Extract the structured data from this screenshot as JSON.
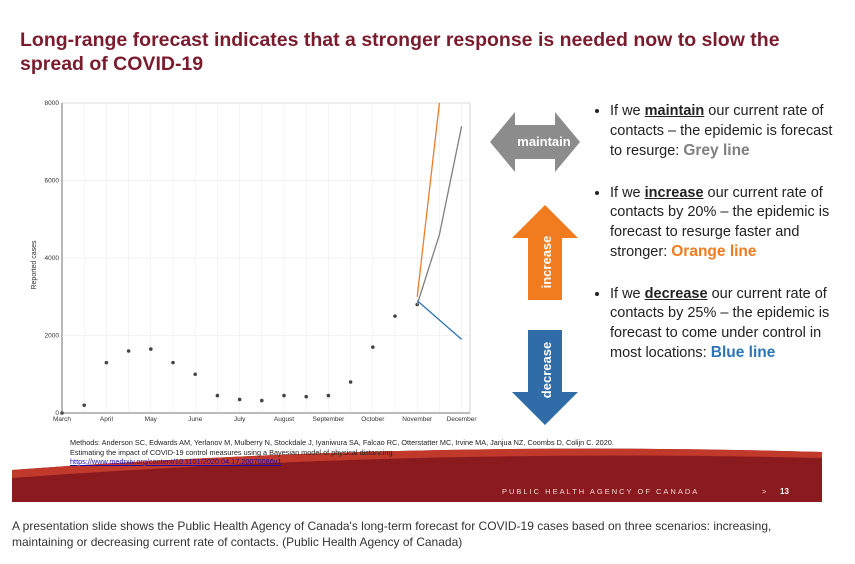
{
  "slide": {
    "title": "Long-range forecast indicates that a stronger response is needed now to slow the spread of COVID-19",
    "methods": "Methods: Anderson SC, Edwards AM, Yerlanov M, Mulberry N, Stockdale J, Iyaniwura SA, Falcao RC, Otterstatter MC, Irvine MA, Janjua NZ, Coombs D, Colijn C. 2020. Estimating the impact of COVID-19 control measures using a Bayesian model of physical distancing.",
    "link": "https://www.medrxiv.org/content/10.1101/2020.04.17.20070086v1",
    "footer": "PUBLIC HEALTH AGENCY OF CANADA",
    "footer_sep": ">",
    "page": "13"
  },
  "arrows": [
    "maintain",
    "increase",
    "decrease"
  ],
  "bullets": [
    {
      "before": "If we ",
      "keyword": "maintain",
      "after": " our current rate of contacts – the epidemic is forecast to resurge: "
    },
    {
      "before": "If we ",
      "keyword": "increase",
      "after": " our current rate of contacts by 20% – the epidemic is forecast to resurge faster and stronger: "
    },
    {
      "before": "If we ",
      "keyword": "decrease",
      "after": " our current rate of contacts by 25% – the epidemic is forecast to come under control in most locations: "
    }
  ],
  "caption": "A presentation slide shows the Public Health Agency of Canada's long-term forecast for COVID-19 cases based on three scenarios: increasing, maintaining or decreasing current rate of contacts. (Public Health Agency of Canada)",
  "chart_data": {
    "type": "line",
    "y_label": "Reported cases",
    "categories": [
      "March",
      null,
      "April",
      null,
      "May",
      null,
      "June",
      null,
      "July",
      null,
      "August",
      null,
      "September",
      null,
      "October",
      null,
      "November",
      null,
      "December"
    ],
    "series": [
      {
        "color": "#444444",
        "style": "points",
        "values": [
          0,
          200,
          1300,
          1600,
          1650,
          1300,
          1000,
          450,
          350,
          320,
          450,
          420,
          450,
          800,
          1700,
          2500,
          2800,
          null,
          null
        ]
      },
      {
        "name": "Grey line",
        "color": "#7f7f7f",
        "style": "line",
        "values": [
          null,
          null,
          null,
          null,
          null,
          null,
          null,
          null,
          null,
          null,
          null,
          null,
          null,
          null,
          null,
          null,
          2800,
          4600,
          7400
        ]
      },
      {
        "name": "Orange line",
        "color": "#f07c2a",
        "style": "line",
        "values": [
          null,
          null,
          null,
          null,
          null,
          null,
          null,
          null,
          null,
          null,
          null,
          null,
          null,
          null,
          null,
          null,
          3000,
          8000,
          null
        ]
      },
      {
        "name": "Blue line",
        "color": "#2e75b6",
        "style": "line",
        "values": [
          null,
          null,
          null,
          null,
          null,
          null,
          null,
          null,
          null,
          null,
          null,
          null,
          null,
          null,
          null,
          null,
          2900,
          2400,
          1900
        ]
      }
    ],
    "ylim": [
      0,
      8000
    ],
    "yticks": [
      0,
      2000,
      4000,
      6000,
      8000
    ],
    "grid": true
  }
}
